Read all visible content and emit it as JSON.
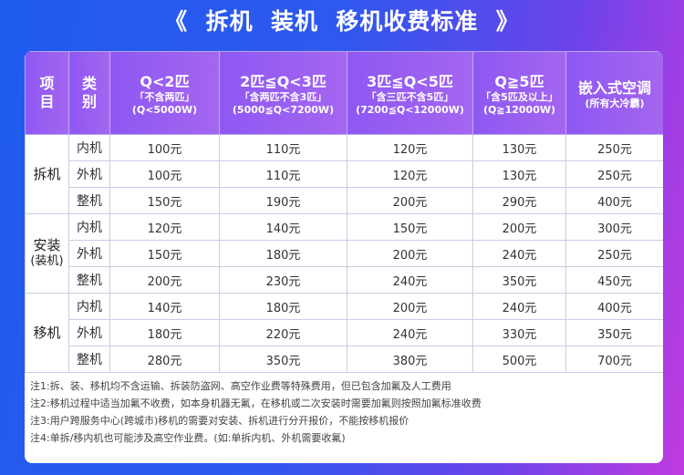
{
  "title": "《  拆机  装机  移机收费标准  》",
  "table": {
    "columns": [
      {
        "title": "项目"
      },
      {
        "title": "类别"
      },
      {
        "title": "Q<2匹",
        "note": "「不含两匹」",
        "range": "(Q<5000W)"
      },
      {
        "title": "2匹≦Q<3匹",
        "note": "「含两匹不含3匹」",
        "range": "(5000≦Q<7200W)"
      },
      {
        "title": "3匹≦Q<5匹",
        "note": "「含三匹不含5匹」",
        "range": "(7200≦Q<12000W)"
      },
      {
        "title": "Q≧5匹",
        "note": "「含5匹及以上」",
        "range": "(Q≧12000W)"
      },
      {
        "title": "嵌入式空调",
        "note": "(所有大冷霸)"
      }
    ],
    "groups": [
      {
        "label": "拆机",
        "rows": [
          [
            "内机",
            "100元",
            "110元",
            "120元",
            "130元",
            "250元"
          ],
          [
            "外机",
            "100元",
            "110元",
            "120元",
            "130元",
            "250元"
          ],
          [
            "整机",
            "150元",
            "190元",
            "200元",
            "290元",
            "400元"
          ]
        ]
      },
      {
        "label": "安装",
        "sublabel": "(装机)",
        "rows": [
          [
            "内机",
            "120元",
            "140元",
            "150元",
            "200元",
            "300元"
          ],
          [
            "外机",
            "150元",
            "180元",
            "200元",
            "240元",
            "250元"
          ],
          [
            "整机",
            "200元",
            "230元",
            "240元",
            "350元",
            "450元"
          ]
        ]
      },
      {
        "label": "移机",
        "rows": [
          [
            "内机",
            "140元",
            "180元",
            "200元",
            "240元",
            "400元"
          ],
          [
            "外机",
            "180元",
            "220元",
            "240元",
            "330元",
            "350元"
          ],
          [
            "整机",
            "280元",
            "350元",
            "380元",
            "500元",
            "700元"
          ]
        ]
      }
    ]
  },
  "notes": [
    "注1:拆、装、移机均不含运输、拆装防盗网、高空作业费等特殊费用，但已包含加氟及人工费用",
    "注2:移机过程中适当加氟不收费，如本身机器无氟，在移机或二次安装时需要加氟则按照加氟标准收费",
    "注3:用户跨服务中心(跨城市)移机的需要对安装、拆机进行分开报价，不能按移机报价",
    "注4:单拆/移内机也可能涉及高空作业费。(如:单拆内机、外机需要收氟)"
  ]
}
